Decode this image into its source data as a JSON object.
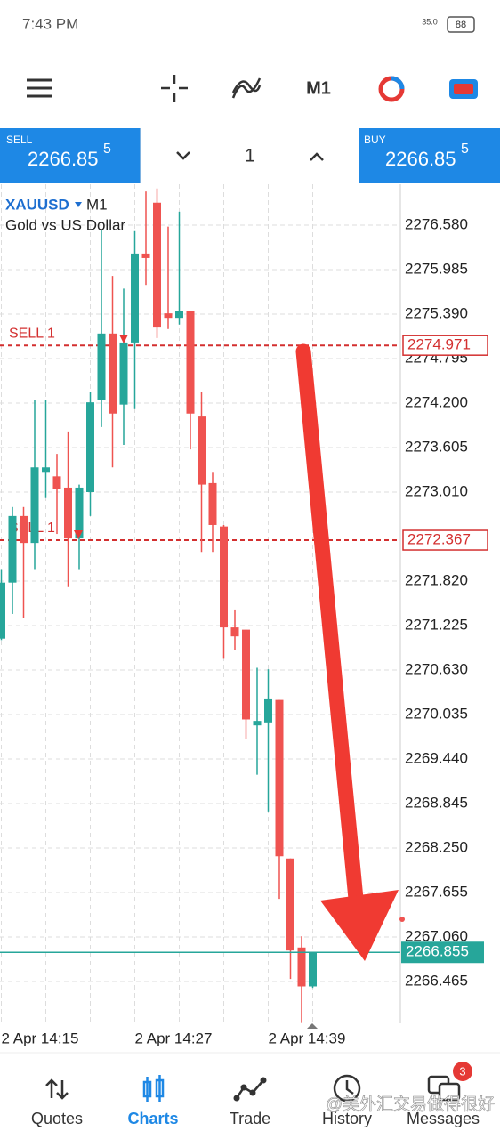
{
  "status_bar": {
    "time": "7:43 PM",
    "speed": "35.0",
    "battery": "88"
  },
  "toolbar": {
    "timeframe": "M1"
  },
  "trade_panel": {
    "sell_label": "SELL",
    "sell_price": "2266.85",
    "sell_digit": "5",
    "volume": "1",
    "buy_label": "BUY",
    "buy_price": "2266.85",
    "buy_digit": "5"
  },
  "chart_header": {
    "symbol": "XAUUSD",
    "timeframe": "M1",
    "description": "Gold vs US Dollar"
  },
  "chart_data": {
    "type": "candlestick",
    "categories": [
      "2 Apr 14:15",
      null,
      null,
      null,
      null,
      null,
      null,
      null,
      null,
      null,
      null,
      null,
      "2 Apr 14:27",
      null,
      null,
      null,
      null,
      null,
      null,
      null,
      null,
      null,
      null,
      null,
      "2 Apr 14:39",
      null,
      null,
      null,
      null
    ],
    "open": [
      2271.05,
      2271.8,
      2272.69,
      2272.33,
      2273.28,
      2273.22,
      2273.07,
      2272.39,
      2273.01,
      2274.24,
      2275.13,
      2274.18,
      2275.01,
      2276.2,
      2276.88,
      2275.4,
      2275.34,
      2275.43,
      2274.02,
      2273.13,
      2272.55,
      2271.2,
      2271.17,
      2269.89,
      2269.93,
      2270.23,
      2268.11,
      2266.92,
      2266.4
    ],
    "high": [
      2271.98,
      2272.81,
      2272.81,
      2274.24,
      2274.24,
      2273.52,
      2273.82,
      2273.11,
      2274.35,
      2276.52,
      2275.9,
      2275.73,
      2276.5,
      2277.03,
      2277.07,
      2276.56,
      2276.76,
      2275.43,
      2274.35,
      2273.28,
      2272.57,
      2271.44,
      2271.17,
      2270.66,
      2270.64,
      2270.23,
      2268.11,
      2267.07,
      2266.86
    ],
    "low": [
      2271.03,
      2271.38,
      2271.32,
      2271.98,
      2272.93,
      2272.45,
      2271.74,
      2271.98,
      2272.69,
      2273.88,
      2273.34,
      2273.64,
      2274.12,
      2275.78,
      2275.07,
      2275.19,
      2275.25,
      2273.58,
      2272.21,
      2272.21,
      2270.78,
      2270.9,
      2269.71,
      2269.23,
      2268.74,
      2267.57,
      2266.5,
      2265.91,
      2266.38
    ],
    "close": [
      2271.8,
      2272.69,
      2272.33,
      2273.34,
      2273.34,
      2273.05,
      2272.39,
      2273.07,
      2274.21,
      2275.13,
      2274.06,
      2275.01,
      2276.2,
      2276.14,
      2275.21,
      2275.34,
      2275.43,
      2274.06,
      2273.11,
      2272.57,
      2271.2,
      2271.08,
      2269.97,
      2269.95,
      2270.25,
      2268.14,
      2266.88,
      2266.4,
      2266.86
    ],
    "up_color": "#26a69a",
    "down_color": "#ef5350",
    "ylim": [
      2265.906,
      2277.127
    ],
    "yticks": [
      {
        "value": 2276.58,
        "label": "2276.580"
      },
      2275.985,
      {
        "value": 2275.39,
        "label": "2275.390"
      },
      2274.795,
      {
        "value": 2274.2,
        "label": "2274.200"
      },
      2273.605,
      {
        "value": 2273.01,
        "label": "2273.010"
      },
      {
        "value": 2271.82,
        "label": "2271.820"
      },
      2271.225,
      {
        "value": 2270.63,
        "label": "2270.630"
      },
      2270.035,
      {
        "value": 2269.44,
        "label": "2269.440"
      },
      2268.845,
      {
        "value": 2268.25,
        "label": "2268.250"
      },
      2267.655,
      {
        "value": 2267.06,
        "label": "2267.060"
      },
      2266.465
    ],
    "grid": true,
    "order_lines": [
      {
        "label": "SELL 1",
        "value": 2274.971,
        "color": "#d32f2f"
      },
      {
        "label": "SELL 1",
        "value": 2272.367,
        "color": "#d32f2f"
      }
    ],
    "current_price": {
      "value": 2266.855,
      "color": "#26a69a"
    }
  },
  "bottom_nav": {
    "items": [
      "Quotes",
      "Charts",
      "Trade",
      "History",
      "Messages"
    ],
    "badge": "3"
  },
  "watermark": "@美外汇交易做得很好"
}
